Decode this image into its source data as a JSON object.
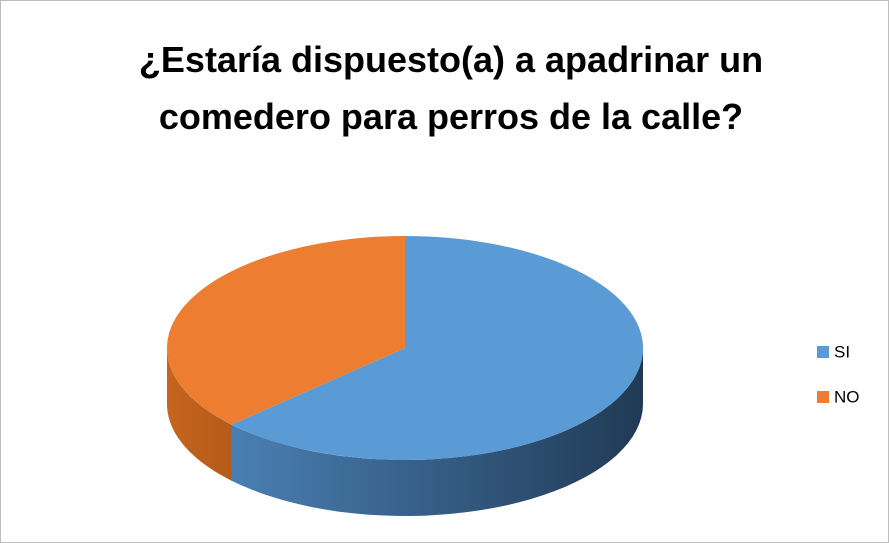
{
  "chart_data": {
    "type": "pie3d",
    "title": "¿Estaría dispuesto(a) a apadrinar un comedero para perros de la calle?",
    "categories": [
      "SI",
      "NO"
    ],
    "values": [
      63,
      37
    ],
    "colors": [
      "#5b9bd5",
      "#ed7d31"
    ],
    "legend": "right"
  }
}
